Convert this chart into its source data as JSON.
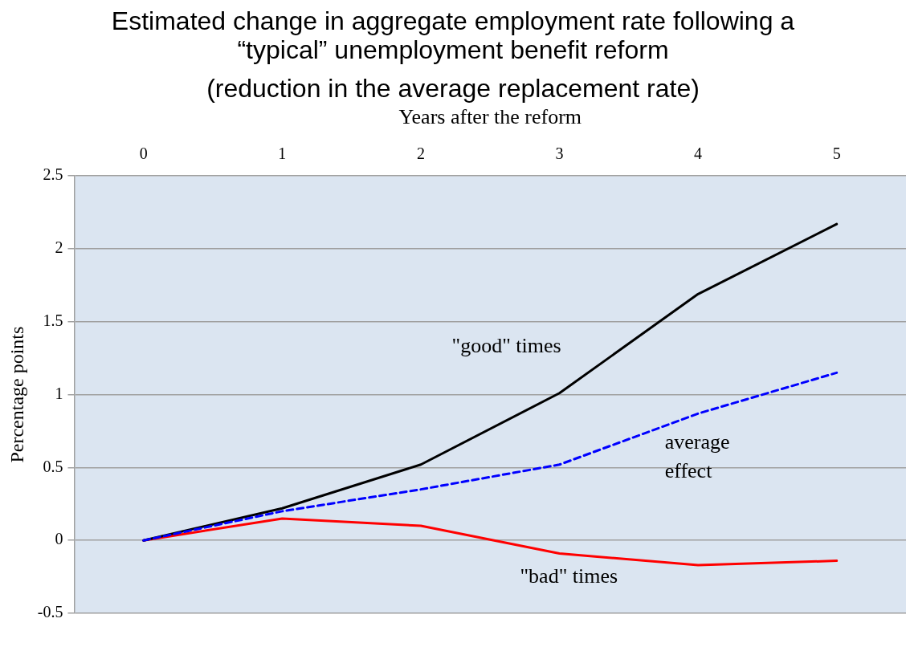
{
  "chart_data": {
    "type": "line",
    "title": "Estimated change in aggregate employment rate following a “typical” unemployment benefit reform",
    "subtitle": "(reduction in the average replacement rate)",
    "xlabel": "Years after the reform",
    "ylabel": "Percentage points",
    "categories": [
      "0",
      "1",
      "2",
      "3",
      "4",
      "5"
    ],
    "series": [
      {
        "name": "\"good\" times",
        "color": "#000000",
        "line_style": "solid",
        "values": [
          0,
          0.22,
          0.52,
          1.01,
          1.69,
          2.17
        ]
      },
      {
        "name": "average effect",
        "color": "#0000ff",
        "line_style": "dashed",
        "values": [
          0,
          0.2,
          0.35,
          0.52,
          0.87,
          1.15
        ]
      },
      {
        "name": "\"bad\" times",
        "color": "#ff0000",
        "line_style": "solid",
        "values": [
          0,
          0.15,
          0.1,
          -0.09,
          -0.17,
          -0.14
        ]
      }
    ],
    "ylim": [
      -0.5,
      2.5
    ],
    "yticks": [
      -0.5,
      0,
      0.5,
      1,
      1.5,
      2,
      2.5
    ],
    "grid": "y",
    "legend": false,
    "marker": "none"
  }
}
